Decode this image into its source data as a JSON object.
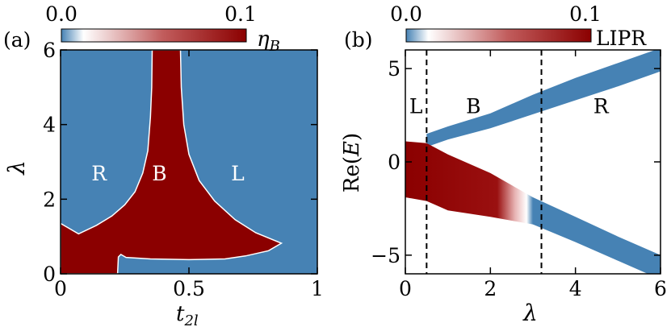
{
  "colors": {
    "blue": "#4682b4",
    "red": "#8b0000",
    "white": "#ffffff"
  },
  "chart_data": [
    {
      "type": "heatmap",
      "panel_label": "(a)",
      "xlabel_main": "t",
      "xlabel_sub": "2l",
      "ylabel": "λ",
      "xlim": [
        0,
        1
      ],
      "ylim": [
        0,
        6
      ],
      "xticks": [
        0,
        0.5,
        1
      ],
      "xtick_labels": [
        "0",
        "0.5",
        "1"
      ],
      "yticks": [
        0,
        2,
        4,
        6
      ],
      "ytick_labels": [
        "0",
        "2",
        "4",
        "6"
      ],
      "colorbar": {
        "min_label": "0.0",
        "max_label": "0.1",
        "label_main": "η",
        "label_sub": "B",
        "range": [
          0,
          0.1
        ]
      },
      "region_labels": [
        {
          "text": "R",
          "x": 0.15,
          "y": 2.7,
          "color": "#ffffff"
        },
        {
          "text": "B",
          "x": 0.385,
          "y": 2.7,
          "color": "#ffffff"
        },
        {
          "text": "L",
          "x": 0.69,
          "y": 2.7,
          "color": "#ffffff"
        }
      ],
      "bulk_region_boundary": [
        [
          0.0,
          1.35
        ],
        [
          0.07,
          1.07
        ],
        [
          0.14,
          1.3
        ],
        [
          0.2,
          1.55
        ],
        [
          0.25,
          1.85
        ],
        [
          0.29,
          2.2
        ],
        [
          0.32,
          2.7
        ],
        [
          0.34,
          3.3
        ],
        [
          0.35,
          4.2
        ],
        [
          0.355,
          5.0
        ],
        [
          0.357,
          6.0
        ],
        [
          0.467,
          6.0
        ],
        [
          0.47,
          5.0
        ],
        [
          0.48,
          4.0
        ],
        [
          0.5,
          3.2
        ],
        [
          0.54,
          2.5
        ],
        [
          0.6,
          1.95
        ],
        [
          0.68,
          1.45
        ],
        [
          0.76,
          1.1
        ],
        [
          0.86,
          0.82
        ],
        [
          0.81,
          0.62
        ],
        [
          0.72,
          0.48
        ],
        [
          0.64,
          0.4
        ],
        [
          0.5,
          0.38
        ],
        [
          0.35,
          0.4
        ],
        [
          0.255,
          0.44
        ],
        [
          0.235,
          0.52
        ],
        [
          0.225,
          0.45
        ],
        [
          0.222,
          0.0
        ],
        [
          0.0,
          0.0
        ]
      ]
    },
    {
      "type": "area",
      "panel_label": "(b)",
      "xlabel": "λ",
      "ylabel_prefix": "Re(",
      "ylabel_var": "E",
      "ylabel_suffix": ")",
      "xlim": [
        0,
        6
      ],
      "ylim": [
        -6,
        6
      ],
      "xticks": [
        0,
        2,
        4,
        6
      ],
      "xtick_labels": [
        "0",
        "2",
        "4",
        "6"
      ],
      "yticks": [
        -5,
        0,
        5
      ],
      "ytick_labels": [
        "−5",
        "0",
        "5"
      ],
      "vlines": [
        0.5,
        3.2
      ],
      "colorbar": {
        "min_label": "0.0",
        "max_label": "0.1",
        "label": "LIPR",
        "range": [
          0,
          0.1
        ]
      },
      "region_labels": [
        {
          "text": "L",
          "x": 0.25,
          "y": 3.0,
          "color": "#000000"
        },
        {
          "text": "B",
          "x": 1.6,
          "y": 3.0,
          "color": "#000000"
        },
        {
          "text": "R",
          "x": 4.6,
          "y": 3.0,
          "color": "#000000"
        }
      ],
      "series": [
        {
          "name": "upper band",
          "x": [
            0.5,
            1.0,
            2.0,
            3.0,
            4.0,
            5.0,
            6.0
          ],
          "lower": [
            0.8,
            1.2,
            1.8,
            2.55,
            3.3,
            4.05,
            4.85
          ],
          "upper": [
            1.5,
            1.9,
            2.6,
            3.6,
            4.5,
            5.3,
            6.1
          ],
          "lipr": "low"
        },
        {
          "name": "lower band",
          "x": [
            0.0,
            0.5,
            1.0,
            2.0,
            3.0,
            4.0,
            5.0,
            6.0
          ],
          "lower": [
            -1.9,
            -2.1,
            -2.6,
            -2.95,
            -3.35,
            -4.3,
            -5.3,
            -6.3
          ],
          "upper": [
            1.1,
            1.0,
            0.4,
            -0.6,
            -1.9,
            -2.95,
            -4.0,
            -5.0
          ],
          "lipr_high_until": 2.6,
          "lipr_transition_end": 3.0
        }
      ]
    }
  ]
}
